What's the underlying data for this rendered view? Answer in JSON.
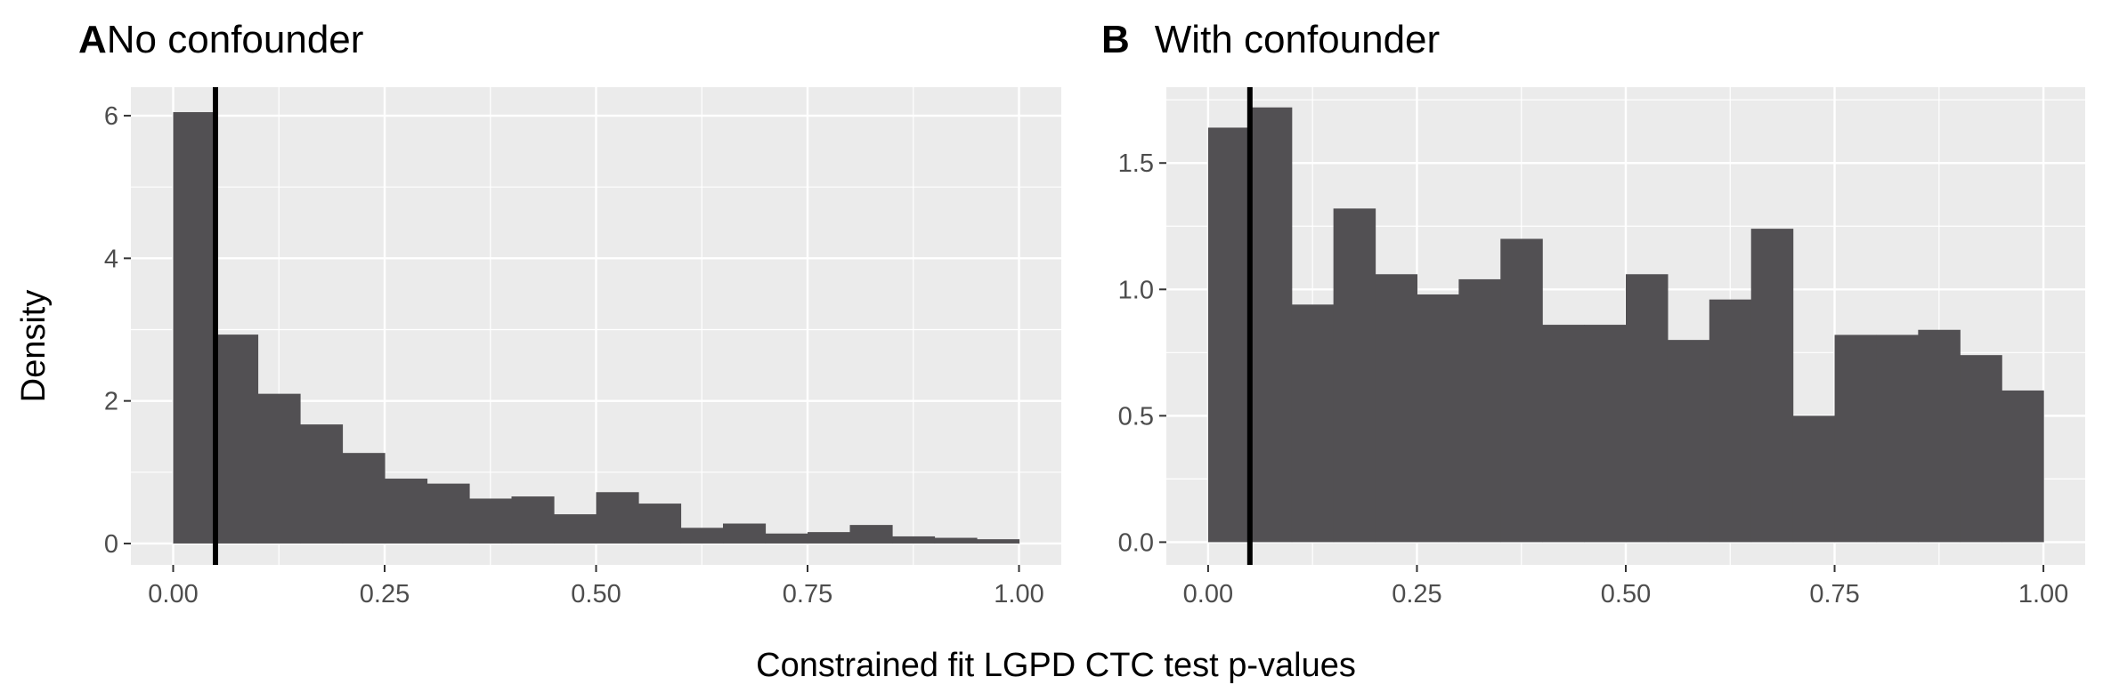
{
  "figure": {
    "xlabel": "Constrained fit LGPD CTC test p-values",
    "ylabel": "Density"
  },
  "chart_data": [
    {
      "type": "bar",
      "tag": "A",
      "title": "No confounder",
      "xlim": [
        -0.05,
        1.05
      ],
      "ylim": [
        -0.3,
        6.4
      ],
      "xticks": [
        0.0,
        0.25,
        0.5,
        0.75,
        1.0
      ],
      "xtick_labels": [
        "0.00",
        "0.25",
        "0.50",
        "0.75",
        "1.00"
      ],
      "yticks": [
        0,
        2,
        4,
        6
      ],
      "ytick_labels": [
        "0",
        "2",
        "4",
        "6"
      ],
      "bin_width": 0.05,
      "bin_starts": [
        0.0,
        0.05,
        0.1,
        0.15,
        0.2,
        0.25,
        0.3,
        0.35,
        0.4,
        0.45,
        0.5,
        0.55,
        0.6,
        0.65,
        0.7,
        0.75,
        0.8,
        0.85,
        0.9,
        0.95
      ],
      "values": [
        6.05,
        2.93,
        2.1,
        1.67,
        1.27,
        0.91,
        0.84,
        0.63,
        0.66,
        0.41,
        0.72,
        0.56,
        0.22,
        0.28,
        0.14,
        0.16,
        0.26,
        0.1,
        0.08,
        0.06
      ],
      "vline": 0.05,
      "bar_color": "#525053",
      "panel_bg": "#ebebeb",
      "grid": true
    },
    {
      "type": "bar",
      "tag": "B",
      "title": "With confounder",
      "xlim": [
        -0.05,
        1.05
      ],
      "ylim": [
        -0.09,
        1.8
      ],
      "xticks": [
        0.0,
        0.25,
        0.5,
        0.75,
        1.0
      ],
      "xtick_labels": [
        "0.00",
        "0.25",
        "0.50",
        "0.75",
        "1.00"
      ],
      "yticks": [
        0.0,
        0.5,
        1.0,
        1.5
      ],
      "ytick_labels": [
        "0.0",
        "0.5",
        "1.0",
        "1.5"
      ],
      "bin_width": 0.05,
      "bin_starts": [
        0.0,
        0.05,
        0.1,
        0.15,
        0.2,
        0.25,
        0.3,
        0.35,
        0.4,
        0.45,
        0.5,
        0.55,
        0.6,
        0.65,
        0.7,
        0.75,
        0.8,
        0.85,
        0.9,
        0.95
      ],
      "values": [
        1.64,
        1.72,
        0.94,
        1.32,
        1.06,
        0.98,
        1.04,
        1.2,
        0.86,
        0.86,
        1.06,
        0.8,
        0.96,
        1.24,
        0.5,
        0.82,
        0.82,
        0.84,
        0.74,
        0.6
      ],
      "vline": 0.05,
      "bar_color": "#525053",
      "panel_bg": "#ebebeb",
      "grid": true
    }
  ]
}
